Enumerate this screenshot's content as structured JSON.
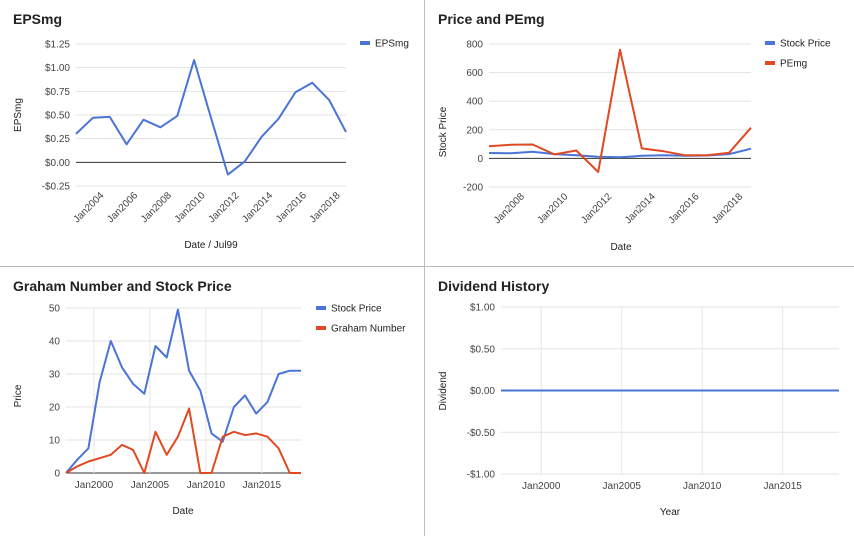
{
  "colors": {
    "blue": "#4a74d6",
    "red": "#df4a24",
    "grid": "#e3e3e3",
    "baseline": "#333333"
  },
  "chart_data": [
    {
      "id": "eps",
      "type": "line",
      "title": "EPSmg",
      "xlabel": "Date / Jul99",
      "ylabel": "EPSmg",
      "x_range": [
        2002.5,
        2018.5
      ],
      "ylim": [
        -0.25,
        1.25
      ],
      "y_ticks": [
        -0.25,
        0,
        0.25,
        0.5,
        0.75,
        1.0,
        1.25
      ],
      "y_tick_labels": [
        "-$0.25",
        "$0.00",
        "$0.25",
        "$0.50",
        "$0.75",
        "$1.00",
        "$1.25"
      ],
      "x_ticks": [
        2004,
        2006,
        2008,
        2010,
        2012,
        2014,
        2016,
        2018
      ],
      "x_tick_labels": [
        "Jan2004",
        "Jan2006",
        "Jan2008",
        "Jan2010",
        "Jan2012",
        "Jan2014",
        "Jan2016",
        "Jan2018"
      ],
      "legend_position": "right",
      "series": [
        {
          "name": "EPSmg",
          "color": "#4a74d6",
          "x": [
            2002.5,
            2003.5,
            2004.5,
            2005.5,
            2006.5,
            2007.5,
            2008.5,
            2009.5,
            2010.5,
            2011.5,
            2012.5,
            2013.5,
            2014.5,
            2015.5,
            2016.5,
            2017.5,
            2018.5
          ],
          "y": [
            0.3,
            0.47,
            0.48,
            0.19,
            0.45,
            0.37,
            0.49,
            1.08,
            0.47,
            -0.13,
            0.01,
            0.27,
            0.46,
            0.74,
            0.84,
            0.66,
            0.32
          ]
        }
      ]
    },
    {
      "id": "pe",
      "type": "line",
      "title": "Price and PEmg",
      "xlabel": "Date",
      "ylabel": "Stock Price",
      "x_range": [
        2006.5,
        2018.5
      ],
      "ylim": [
        -200,
        800
      ],
      "y_ticks": [
        -200,
        0,
        200,
        400,
        600,
        800
      ],
      "y_tick_labels": [
        "-200",
        "0",
        "200",
        "400",
        "600",
        "800"
      ],
      "x_ticks": [
        2008,
        2010,
        2012,
        2014,
        2016,
        2018
      ],
      "x_tick_labels": [
        "Jan2008",
        "Jan2010",
        "Jan2012",
        "Jan2014",
        "Jan2016",
        "Jan2018"
      ],
      "legend_position": "right",
      "series": [
        {
          "name": "Stock Price",
          "color": "#4a74d6",
          "x": [
            2006.5,
            2007.5,
            2008.5,
            2009.5,
            2010.5,
            2011.5,
            2012.5,
            2013.5,
            2014.5,
            2015.5,
            2016.5,
            2017.5,
            2018.5
          ],
          "y": [
            38,
            36,
            47,
            30,
            22,
            12,
            8,
            18,
            22,
            18,
            20,
            30,
            68
          ]
        },
        {
          "name": "PEmg",
          "color": "#df4a24",
          "x": [
            2006.5,
            2007.5,
            2008.5,
            2009.5,
            2010.5,
            2011.5,
            2012.5,
            2013.5,
            2014.5,
            2015.5,
            2016.5,
            2017.5,
            2018.5
          ],
          "y": [
            85,
            95,
            97,
            28,
            55,
            -95,
            760,
            70,
            50,
            22,
            22,
            40,
            215
          ]
        }
      ]
    },
    {
      "id": "graham",
      "type": "line",
      "title": "Graham Number and Stock Price",
      "xlabel": "Date",
      "ylabel": "Price",
      "x_range": [
        1997.5,
        2018.5
      ],
      "ylim": [
        0,
        50
      ],
      "y_ticks": [
        0,
        10,
        20,
        30,
        40,
        50
      ],
      "y_tick_labels": [
        "0",
        "10",
        "20",
        "30",
        "40",
        "50"
      ],
      "x_ticks": [
        2000,
        2005,
        2010,
        2015
      ],
      "x_tick_labels": [
        "Jan2000",
        "Jan2005",
        "Jan2010",
        "Jan2015"
      ],
      "legend_position": "right",
      "series": [
        {
          "name": "Stock Price",
          "color": "#4a74d6",
          "x": [
            1997.5,
            1998.5,
            1999.5,
            2000.5,
            2001.5,
            2002.5,
            2003.5,
            2004.5,
            2005.5,
            2006.5,
            2007.5,
            2008.5,
            2009.5,
            2010.5,
            2011.5,
            2012.5,
            2013.5,
            2014.5,
            2015.5,
            2016.5,
            2017.5,
            2018.5
          ],
          "y": [
            0,
            4,
            7.5,
            27.5,
            40,
            32,
            27,
            24,
            38.5,
            35,
            49.5,
            31,
            25,
            12,
            9.5,
            20,
            23.5,
            18,
            21.5,
            30,
            31,
            31
          ]
        },
        {
          "name": "Graham Number",
          "color": "#df4a24",
          "x": [
            1997.5,
            1998.5,
            1999.5,
            2000.5,
            2001.5,
            2002.5,
            2003.5,
            2004.5,
            2005.5,
            2006.5,
            2007.5,
            2008.5,
            2009.5,
            2010.5,
            2011.5,
            2012.5,
            2013.5,
            2014.5,
            2015.5,
            2016.5,
            2017.5,
            2018.5
          ],
          "y": [
            0,
            2,
            3.5,
            4.5,
            5.5,
            8.5,
            7,
            0,
            12.5,
            5.5,
            11,
            19.5,
            0,
            0,
            11,
            12.5,
            11.5,
            12,
            11,
            7.5,
            0,
            0
          ]
        }
      ]
    },
    {
      "id": "dividend",
      "type": "line",
      "title": "Dividend History",
      "xlabel": "Year",
      "ylabel": "Dividend",
      "x_range": [
        1997.5,
        2018.5
      ],
      "ylim": [
        -1,
        1
      ],
      "y_ticks": [
        -1,
        -0.5,
        0,
        0.5,
        1
      ],
      "y_tick_labels": [
        "-$1.00",
        "-$0.50",
        "$0.00",
        "$0.50",
        "$1.00"
      ],
      "x_ticks": [
        2000,
        2005,
        2010,
        2015
      ],
      "x_tick_labels": [
        "Jan2000",
        "Jan2005",
        "Jan2010",
        "Jan2015"
      ],
      "legend_position": "none",
      "series": [
        {
          "color": "#4a74d6",
          "x": [
            1997.5,
            2018.5
          ],
          "y": [
            0,
            0
          ]
        }
      ]
    }
  ]
}
